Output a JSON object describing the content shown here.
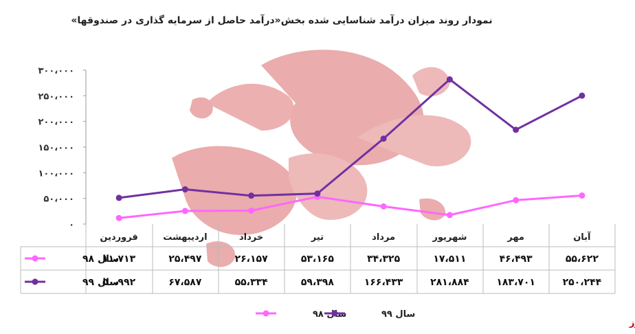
{
  "chart_data": {
    "type": "line",
    "title": "نمودار روند میزان درآمد شناسایی شده بخش«درآمد حاصل از سرمایه گذاری در صندوقها»",
    "categories": [
      "آبان",
      "مهر",
      "شهریور",
      "مرداد",
      "تیر",
      "خرداد",
      "اردیبهشت",
      "فروردین"
    ],
    "x_direction": "right-to-left",
    "ylim": [
      0,
      300000
    ],
    "yticks": [
      "۳۰۰،۰۰۰",
      "۲۵۰،۰۰۰",
      "۲۰۰،۰۰۰",
      "۱۵۰،۰۰۰",
      "۱۰۰،۰۰۰",
      "۵۰،۰۰۰",
      "۰"
    ],
    "ytick_values": [
      300000,
      250000,
      200000,
      150000,
      100000,
      50000,
      0
    ],
    "grid": false,
    "legend": "bottom-center",
    "data_table": true,
    "series": [
      {
        "name": "سال ۹۸",
        "color": "#ff66ff",
        "values": [
          55622,
          46493,
          17511,
          34325,
          53165,
          26157,
          25497,
          11713
        ],
        "labels": [
          "۵۵،۶۲۲",
          "۴۶،۴۹۳",
          "۱۷،۵۱۱",
          "۳۴،۳۲۵",
          "۵۳،۱۶۵",
          "۲۶،۱۵۷",
          "۲۵،۴۹۷",
          "۱۱،۷۱۳"
        ]
      },
      {
        "name": "سال ۹۹",
        "color": "#7030a0",
        "values": [
          250244,
          183701,
          281884,
          166433,
          59398,
          55334,
          67587,
          50992
        ],
        "labels": [
          "۲۵۰،۲۴۴",
          "۱۸۳،۷۰۱",
          "۲۸۱،۸۸۴",
          "۱۶۶،۴۳۳",
          "۵۹،۳۹۸",
          "۵۵،۳۳۴",
          "۶۷،۵۸۷",
          "۵۰،۹۹۲"
        ]
      }
    ]
  },
  "watermark_text": "بورس نیوز",
  "source_label": "بورس نیوز"
}
